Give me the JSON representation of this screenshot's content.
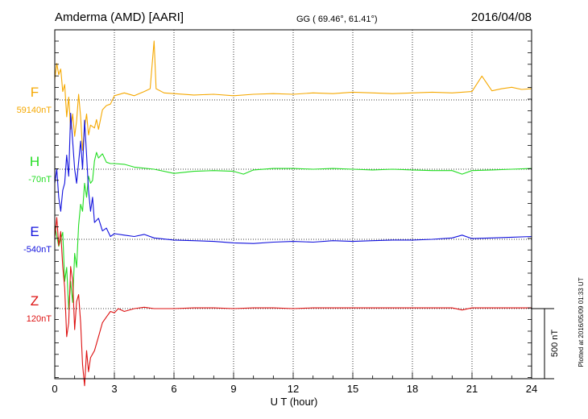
{
  "header": {
    "station": "Amderma (AMD)  [AARI]",
    "coords": "GG ( 69.46°,  61.41°)",
    "date": "2016/04/08"
  },
  "footer_note": "Plotted at 2016/05/09 01:33 UT",
  "chart_data": {
    "type": "line",
    "xlabel": "U T (hour)",
    "xlim": [
      0,
      24
    ],
    "xticks": [
      0,
      3,
      6,
      9,
      12,
      15,
      18,
      21,
      24
    ],
    "grid": "vertical dotted every 3 hours; horizontal dotted baseline per trace",
    "scale_bar": {
      "label": "500 nT",
      "value_nT": 500
    },
    "series": [
      {
        "name": "F",
        "baseline_label": "59140nT",
        "color": "#f5a800",
        "points": [
          [
            0,
            150
          ],
          [
            0.1,
            260
          ],
          [
            0.2,
            180
          ],
          [
            0.3,
            220
          ],
          [
            0.4,
            60
          ],
          [
            0.5,
            110
          ],
          [
            0.6,
            -120
          ],
          [
            0.7,
            20
          ],
          [
            0.8,
            -210
          ],
          [
            0.9,
            -100
          ],
          [
            1.0,
            -260
          ],
          [
            1.1,
            -150
          ],
          [
            1.2,
            40
          ],
          [
            1.3,
            -120
          ],
          [
            1.4,
            -360
          ],
          [
            1.5,
            -200
          ],
          [
            1.6,
            -100
          ],
          [
            1.7,
            -250
          ],
          [
            1.8,
            -180
          ],
          [
            2.0,
            -200
          ],
          [
            2.1,
            -140
          ],
          [
            2.2,
            -210
          ],
          [
            2.4,
            -70
          ],
          [
            2.6,
            -40
          ],
          [
            2.8,
            -30
          ],
          [
            3.0,
            30
          ],
          [
            3.5,
            50
          ],
          [
            4.0,
            30
          ],
          [
            4.5,
            60
          ],
          [
            4.8,
            80
          ],
          [
            5.0,
            420
          ],
          [
            5.1,
            80
          ],
          [
            5.5,
            50
          ],
          [
            6.0,
            45
          ],
          [
            7.0,
            35
          ],
          [
            8.0,
            40
          ],
          [
            9.0,
            30
          ],
          [
            10.0,
            40
          ],
          [
            11.0,
            45
          ],
          [
            12.0,
            40
          ],
          [
            13.0,
            50
          ],
          [
            14.0,
            45
          ],
          [
            15.0,
            55
          ],
          [
            16.0,
            50
          ],
          [
            17.0,
            45
          ],
          [
            18.0,
            50
          ],
          [
            19.0,
            55
          ],
          [
            20.0,
            50
          ],
          [
            21.0,
            60
          ],
          [
            21.5,
            170
          ],
          [
            22.0,
            65
          ],
          [
            22.5,
            80
          ],
          [
            23.0,
            90
          ],
          [
            23.5,
            75
          ],
          [
            24.0,
            80
          ]
        ]
      },
      {
        "name": "H",
        "baseline_label": "-70nT",
        "color": "#22dd22",
        "points": [
          [
            0,
            -400
          ],
          [
            0.2,
            -550
          ],
          [
            0.4,
            -450
          ],
          [
            0.5,
            -800
          ],
          [
            0.6,
            -700
          ],
          [
            0.7,
            -1000
          ],
          [
            0.8,
            -800
          ],
          [
            0.9,
            -950
          ],
          [
            1.0,
            -600
          ],
          [
            1.1,
            -700
          ],
          [
            1.2,
            -400
          ],
          [
            1.3,
            -250
          ],
          [
            1.4,
            -300
          ],
          [
            1.5,
            -100
          ],
          [
            1.6,
            -200
          ],
          [
            1.7,
            -50
          ],
          [
            1.8,
            -100
          ],
          [
            1.9,
            -80
          ],
          [
            2.0,
            60
          ],
          [
            2.1,
            120
          ],
          [
            2.2,
            80
          ],
          [
            2.4,
            110
          ],
          [
            2.6,
            50
          ],
          [
            2.8,
            40
          ],
          [
            3.0,
            40
          ],
          [
            3.5,
            35
          ],
          [
            4.0,
            15
          ],
          [
            5.0,
            0
          ],
          [
            6.0,
            -30
          ],
          [
            7.0,
            -15
          ],
          [
            8.0,
            -10
          ],
          [
            9.0,
            -15
          ],
          [
            9.5,
            -35
          ],
          [
            10.0,
            -5
          ],
          [
            11.0,
            5
          ],
          [
            12.0,
            5
          ],
          [
            13.0,
            0
          ],
          [
            14.0,
            5
          ],
          [
            15.0,
            0
          ],
          [
            16.0,
            -5
          ],
          [
            17.0,
            0
          ],
          [
            18.0,
            -5
          ],
          [
            19.0,
            -10
          ],
          [
            20.0,
            -10
          ],
          [
            20.5,
            -35
          ],
          [
            21.0,
            -10
          ],
          [
            22.0,
            -5
          ],
          [
            23.0,
            0
          ],
          [
            24.0,
            5
          ]
        ]
      },
      {
        "name": "E",
        "baseline_label": "-540nT",
        "color": "#1111dd",
        "points": [
          [
            0,
            400
          ],
          [
            0.1,
            500
          ],
          [
            0.2,
            300
          ],
          [
            0.3,
            200
          ],
          [
            0.4,
            350
          ],
          [
            0.5,
            400
          ],
          [
            0.6,
            600
          ],
          [
            0.7,
            450
          ],
          [
            0.8,
            900
          ],
          [
            0.9,
            700
          ],
          [
            1.0,
            500
          ],
          [
            1.1,
            400
          ],
          [
            1.2,
            550
          ],
          [
            1.3,
            700
          ],
          [
            1.4,
            500
          ],
          [
            1.5,
            850
          ],
          [
            1.6,
            600
          ],
          [
            1.7,
            350
          ],
          [
            1.8,
            200
          ],
          [
            1.9,
            300
          ],
          [
            2.0,
            120
          ],
          [
            2.2,
            150
          ],
          [
            2.4,
            60
          ],
          [
            2.6,
            80
          ],
          [
            2.8,
            20
          ],
          [
            3.0,
            40
          ],
          [
            3.5,
            30
          ],
          [
            4.0,
            20
          ],
          [
            4.5,
            35
          ],
          [
            5.0,
            10
          ],
          [
            6.0,
            -5
          ],
          [
            7.0,
            -10
          ],
          [
            8.0,
            -15
          ],
          [
            9.0,
            -25
          ],
          [
            10.0,
            -30
          ],
          [
            11.0,
            -20
          ],
          [
            12.0,
            -15
          ],
          [
            13.0,
            -20
          ],
          [
            14.0,
            -10
          ],
          [
            15.0,
            -15
          ],
          [
            16.0,
            -10
          ],
          [
            17.0,
            -5
          ],
          [
            18.0,
            -5
          ],
          [
            19.0,
            0
          ],
          [
            20.0,
            10
          ],
          [
            20.5,
            30
          ],
          [
            21.0,
            5
          ],
          [
            22.0,
            10
          ],
          [
            23.0,
            15
          ],
          [
            24.0,
            20
          ]
        ]
      },
      {
        "name": "Z",
        "baseline_label": "120nT",
        "color": "#dd1111",
        "points": [
          [
            0,
            500
          ],
          [
            0.1,
            650
          ],
          [
            0.2,
            450
          ],
          [
            0.3,
            550
          ],
          [
            0.4,
            300
          ],
          [
            0.5,
            150
          ],
          [
            0.6,
            -200
          ],
          [
            0.7,
            -100
          ],
          [
            0.8,
            300
          ],
          [
            0.9,
            200
          ],
          [
            1.0,
            -150
          ],
          [
            1.1,
            50
          ],
          [
            1.2,
            100
          ],
          [
            1.3,
            -100
          ],
          [
            1.4,
            -400
          ],
          [
            1.5,
            -550
          ],
          [
            1.6,
            -300
          ],
          [
            1.7,
            -450
          ],
          [
            1.8,
            -350
          ],
          [
            2.0,
            -300
          ],
          [
            2.2,
            -200
          ],
          [
            2.4,
            -100
          ],
          [
            2.6,
            -60
          ],
          [
            2.8,
            -20
          ],
          [
            3.0,
            -30
          ],
          [
            3.2,
            0
          ],
          [
            3.5,
            -20
          ],
          [
            4.0,
            0
          ],
          [
            4.5,
            10
          ],
          [
            5.0,
            0
          ],
          [
            6.0,
            0
          ],
          [
            7.0,
            5
          ],
          [
            8.0,
            5
          ],
          [
            9.0,
            0
          ],
          [
            10.0,
            5
          ],
          [
            11.0,
            5
          ],
          [
            12.0,
            0
          ],
          [
            13.0,
            5
          ],
          [
            14.0,
            5
          ],
          [
            15.0,
            5
          ],
          [
            16.0,
            5
          ],
          [
            17.0,
            5
          ],
          [
            18.0,
            5
          ],
          [
            19.0,
            5
          ],
          [
            20.0,
            5
          ],
          [
            20.5,
            -10
          ],
          [
            21.0,
            5
          ],
          [
            22.0,
            5
          ],
          [
            23.0,
            5
          ],
          [
            24.0,
            5
          ]
        ]
      }
    ]
  }
}
